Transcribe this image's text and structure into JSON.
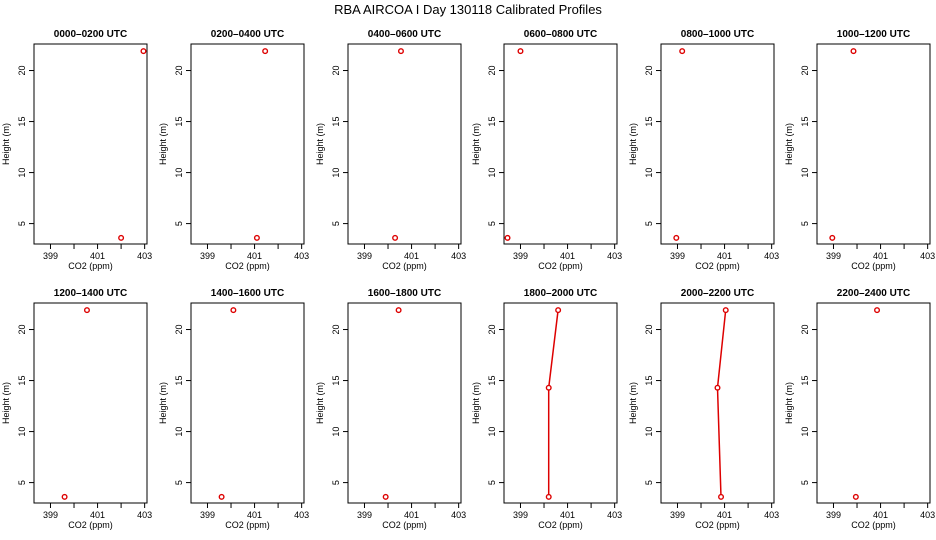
{
  "title": "RBA AIRCOA I  Day 130118  Calibrated Profiles",
  "colors": {
    "marker": "#dd0000",
    "line": "#dd0000",
    "axis": "#000000"
  },
  "chart_data": {
    "type": "line",
    "xlabel": "CO2 (ppm)",
    "ylabel": "Height (m)",
    "xlim": [
      398.3,
      403.1
    ],
    "ylim": [
      3.0,
      22.6
    ],
    "xticks": [
      399,
      401,
      403
    ],
    "xticks_minor": [
      400,
      402
    ],
    "yticks": [
      5,
      10,
      15,
      20
    ],
    "panels": [
      {
        "title": "0000–0200 UTC",
        "x": [
          402.0,
          402.95
        ],
        "y": [
          3.6,
          21.9
        ],
        "connect": false
      },
      {
        "title": "0200–0400 UTC",
        "x": [
          401.1,
          401.45
        ],
        "y": [
          3.6,
          21.9
        ],
        "connect": false
      },
      {
        "title": "0400–0600 UTC",
        "x": [
          400.3,
          400.55
        ],
        "y": [
          3.6,
          21.9
        ],
        "connect": false
      },
      {
        "title": "0600–0800 UTC",
        "x": [
          398.45,
          399.0
        ],
        "y": [
          3.6,
          21.9
        ],
        "connect": false
      },
      {
        "title": "0800–1000 UTC",
        "x": [
          398.95,
          399.2
        ],
        "y": [
          3.6,
          21.9
        ],
        "connect": false
      },
      {
        "title": "1000–1200 UTC",
        "x": [
          398.95,
          399.85
        ],
        "y": [
          3.6,
          21.9
        ],
        "connect": false
      },
      {
        "title": "1200–1400 UTC",
        "x": [
          399.6,
          400.55
        ],
        "y": [
          3.6,
          21.9
        ],
        "connect": false
      },
      {
        "title": "1400–1600 UTC",
        "x": [
          399.6,
          400.1
        ],
        "y": [
          3.6,
          21.9
        ],
        "connect": false
      },
      {
        "title": "1600–1800 UTC",
        "x": [
          399.9,
          400.45
        ],
        "y": [
          3.6,
          21.9
        ],
        "connect": false
      },
      {
        "title": "1800–2000 UTC",
        "x": [
          400.2,
          400.2,
          400.6
        ],
        "y": [
          3.6,
          14.3,
          21.9
        ],
        "connect": true
      },
      {
        "title": "2000–2200 UTC",
        "x": [
          400.85,
          400.7,
          401.05
        ],
        "y": [
          3.6,
          14.3,
          21.9
        ],
        "connect": true
      },
      {
        "title": "2200–2400 UTC",
        "x": [
          399.95,
          400.85
        ],
        "y": [
          3.6,
          21.9
        ],
        "connect": false
      }
    ]
  }
}
